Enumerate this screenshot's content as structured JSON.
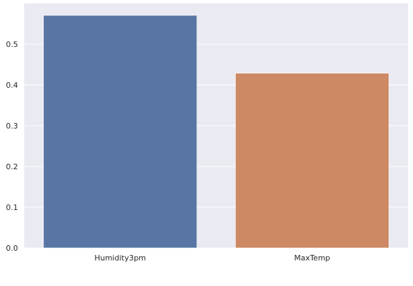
{
  "chart_data": {
    "type": "bar",
    "categories": [
      "Humidity3pm",
      "MaxTemp"
    ],
    "values": [
      0.571,
      0.429
    ],
    "colors": [
      "#5875a4",
      "#cc8963"
    ],
    "background": "#eaeaf2",
    "grid": true,
    "grid_color": "#ffffff",
    "title": "",
    "xlabel": "",
    "ylabel": "",
    "ylim": [
      0,
      0.6
    ],
    "yticks": [
      0.0,
      0.1,
      0.2,
      0.3,
      0.4,
      0.5
    ],
    "ytick_labels": [
      "0.0",
      "0.1",
      "0.2",
      "0.3",
      "0.4",
      "0.5"
    ]
  }
}
